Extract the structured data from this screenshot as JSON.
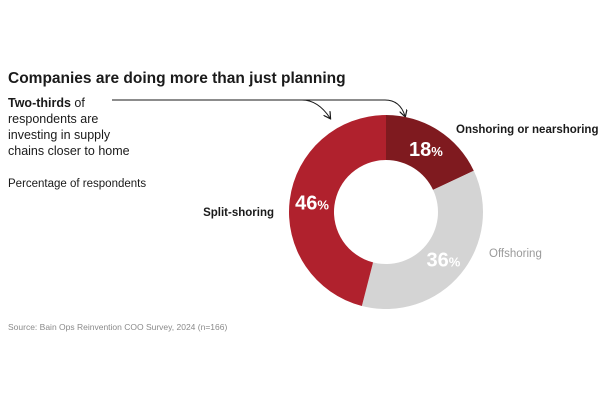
{
  "chart_data": {
    "type": "donut",
    "title": "Companies are doing more than just planning",
    "annotation": {
      "bold": "Two-thirds",
      "line1_rest": " of",
      "line2": "respondents are",
      "line3": "investing in supply",
      "line4": "chains closer to home"
    },
    "subtitle": "Percentage of respondents",
    "unit": "%",
    "slices": [
      {
        "label": "Onshoring or nearshoring",
        "value": 18,
        "color": "#7f1a1f",
        "label_color": "#1a1a1a"
      },
      {
        "label": "Offshoring",
        "value": 36,
        "color": "#d4d4d4",
        "label_color": "#9a9a9a"
      },
      {
        "label": "Split-shoring",
        "value": 46,
        "color": "#b0212d",
        "label_color": "#1a1a1a"
      }
    ],
    "source": "Source: Bain Ops Reinvention COO Survey, 2024 (n=166)"
  }
}
